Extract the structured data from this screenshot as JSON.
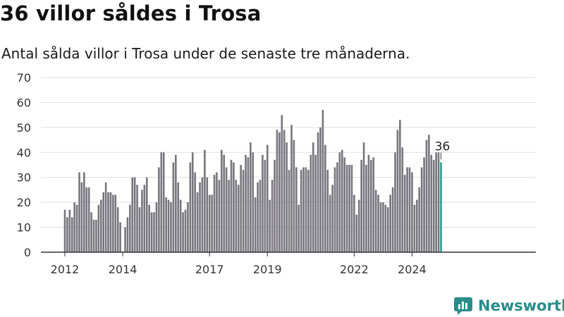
{
  "title": "36 villor såldes i Trosa",
  "subtitle": "Antal sålda villor i Trosa under de senaste tre månaderna.",
  "brand": {
    "name": "Newsworthy"
  },
  "colors": {
    "bar": "#77767d",
    "highlight": "#2a9d96",
    "grid": "#dddddd",
    "axis": "#333333",
    "brand": "#2a8c8a"
  },
  "chart_data": {
    "type": "bar",
    "x_start": "2012-01",
    "x_end": "2024-11",
    "ylim": [
      0,
      70
    ],
    "yticks": [
      0,
      10,
      20,
      30,
      40,
      50,
      60,
      70
    ],
    "xticks": [
      {
        "label": "2012",
        "x": "2012-01"
      },
      {
        "label": "2014",
        "x": "2014-01"
      },
      {
        "label": "2017",
        "x": "2017-01"
      },
      {
        "label": "2019",
        "x": "2019-01"
      },
      {
        "label": "2022",
        "x": "2022-01"
      },
      {
        "label": "2024",
        "x": "2024-01"
      }
    ],
    "values": [
      17,
      14,
      17,
      14,
      20,
      19,
      32,
      28,
      32,
      26,
      26,
      16,
      13,
      13,
      19,
      21,
      24,
      28,
      24,
      24,
      23,
      23,
      18,
      12,
      null,
      10,
      14,
      19,
      30,
      30,
      27,
      18,
      25,
      27,
      30,
      19,
      16,
      16,
      20,
      34,
      40,
      40,
      22,
      21,
      20,
      36,
      39,
      28,
      21,
      16,
      17,
      20,
      36,
      40,
      32,
      24,
      28,
      30,
      41,
      30,
      23,
      23,
      31,
      32,
      29,
      41,
      39,
      34,
      29,
      37,
      36,
      29,
      27,
      35,
      33,
      39,
      38,
      44,
      40,
      22,
      28,
      29,
      39,
      37,
      43,
      21,
      29,
      37,
      49,
      48,
      55,
      49,
      44,
      33,
      51,
      45,
      34,
      19,
      33,
      34,
      34,
      33,
      39,
      44,
      39,
      48,
      50,
      57,
      43,
      33,
      23,
      27,
      34,
      36,
      40,
      41,
      38,
      35,
      35,
      35,
      23,
      15,
      21,
      37,
      44,
      35,
      39,
      37,
      38,
      25,
      23,
      20,
      20,
      19,
      18,
      23,
      26,
      40,
      49,
      53,
      42,
      31,
      34,
      34,
      32,
      19,
      21,
      26,
      34,
      38,
      45,
      47,
      39,
      37,
      40,
      40,
      36
    ],
    "highlight_last": true,
    "last_label": "36"
  }
}
